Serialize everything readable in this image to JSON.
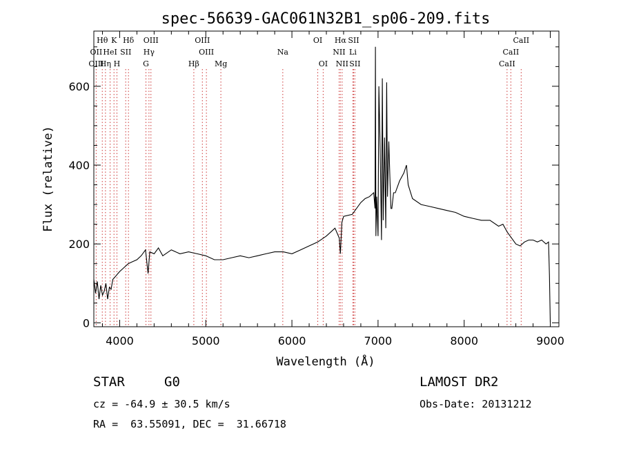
{
  "chart_data": {
    "type": "line",
    "title": "spec-56639-GAC061N32B1_sp06-209.fits",
    "xlabel": "Wavelength (Å)",
    "ylabel": "Flux (relative)",
    "xlim": [
      3700,
      9100
    ],
    "ylim": [
      -10,
      740
    ],
    "x_ticks": [
      4000,
      5000,
      6000,
      7000,
      8000,
      9000
    ],
    "y_ticks": [
      0,
      200,
      400,
      600
    ],
    "grid": false,
    "legend": "none",
    "series": [
      {
        "x": [
          3700,
          3720,
          3740,
          3760,
          3780,
          3800,
          3820,
          3840,
          3860,
          3880,
          3900,
          3920,
          3940,
          3960,
          3980,
          4000,
          4050,
          4100,
          4150,
          4200,
          4250,
          4300,
          4330,
          4350,
          4400,
          4450,
          4500,
          4600,
          4700,
          4800,
          4900,
          5000,
          5100,
          5200,
          5300,
          5400,
          5500,
          5600,
          5700,
          5800,
          5900,
          6000,
          6100,
          6200,
          6300,
          6400,
          6500,
          6550,
          6563,
          6580,
          6600,
          6700,
          6800,
          6850,
          6900,
          6950,
          6965,
          6970,
          6975,
          6985,
          7000,
          7010,
          7025,
          7040,
          7050,
          7060,
          7075,
          7090,
          7100,
          7110,
          7125,
          7140,
          7150,
          7160,
          7180,
          7200,
          7250,
          7300,
          7330,
          7350,
          7400,
          7500,
          7600,
          7700,
          7800,
          7900,
          8000,
          8100,
          8200,
          8300,
          8400,
          8450,
          8500,
          8550,
          8600,
          8650,
          8700,
          8750,
          8800,
          8850,
          8900,
          8950,
          8980,
          8990,
          9000
        ],
        "y": [
          110,
          75,
          105,
          60,
          95,
          70,
          80,
          100,
          60,
          90,
          85,
          110,
          115,
          120,
          125,
          130,
          140,
          150,
          155,
          160,
          170,
          185,
          125,
          180,
          175,
          190,
          170,
          185,
          175,
          180,
          175,
          170,
          160,
          160,
          165,
          170,
          165,
          170,
          175,
          180,
          180,
          175,
          185,
          195,
          205,
          220,
          240,
          215,
          175,
          255,
          270,
          275,
          305,
          315,
          320,
          330,
          290,
          700,
          220,
          320,
          220,
          600,
          440,
          210,
          620,
          260,
          470,
          240,
          610,
          320,
          460,
          350,
          290,
          290,
          330,
          330,
          360,
          380,
          400,
          350,
          315,
          300,
          295,
          290,
          285,
          280,
          270,
          265,
          260,
          260,
          245,
          250,
          230,
          215,
          200,
          195,
          205,
          210,
          210,
          205,
          210,
          200,
          205,
          120,
          0
        ]
      }
    ],
    "spectral_lines": [
      {
        "label": "Hθ",
        "x": 3798,
        "row": 1
      },
      {
        "label": "OII",
        "x": 3727,
        "row": 2
      },
      {
        "label": "OIII",
        "x": 3727,
        "row": 3
      },
      {
        "label": "Hη",
        "x": 3835,
        "row": 3
      },
      {
        "label": "K",
        "x": 3934,
        "row": 1
      },
      {
        "label": "HeI",
        "x": 3889,
        "row": 2
      },
      {
        "label": "SII",
        "x": 4070,
        "row": 2
      },
      {
        "label": "H",
        "x": 3968,
        "row": 3
      },
      {
        "label": "Hδ",
        "x": 4102,
        "row": 1
      },
      {
        "label": "OIII",
        "x": 4363,
        "row": 1
      },
      {
        "label": "Hγ",
        "x": 4340,
        "row": 2
      },
      {
        "label": "G",
        "x": 4305,
        "row": 3
      },
      {
        "label": "OIII",
        "x": 4960,
        "row": 1
      },
      {
        "label": "OIII",
        "x": 5007,
        "row": 2
      },
      {
        "label": "Hβ",
        "x": 4861,
        "row": 3
      },
      {
        "label": "Mg",
        "x": 5175,
        "row": 3
      },
      {
        "label": "Na",
        "x": 5894,
        "row": 2
      },
      {
        "label": "OI",
        "x": 6300,
        "row": 1
      },
      {
        "label": "OI",
        "x": 6363,
        "row": 3
      },
      {
        "label": "Hα",
        "x": 6563,
        "row": 1
      },
      {
        "label": "SII",
        "x": 6716,
        "row": 1
      },
      {
        "label": "NII",
        "x": 6548,
        "row": 2
      },
      {
        "label": "Li",
        "x": 6708,
        "row": 2
      },
      {
        "label": "NII",
        "x": 6583,
        "row": 3
      },
      {
        "label": "SII",
        "x": 6731,
        "row": 3
      },
      {
        "label": "CaII",
        "x": 8662,
        "row": 1
      },
      {
        "label": "CaII",
        "x": 8542,
        "row": 2
      },
      {
        "label": "CaII",
        "x": 8498,
        "row": 3
      }
    ]
  },
  "info": {
    "object_class": "STAR",
    "subclass": "G0",
    "survey": "LAMOST DR2",
    "redshift_line": "cz = -64.9 ± 30.5 km/s",
    "obs_date_line": "Obs-Date: 20131212",
    "coords_line": "RA =  63.55091, DEC =  31.66718"
  },
  "colors": {
    "spectrum": "#000000",
    "line_markers": "#cc3333",
    "axes": "#000000"
  }
}
